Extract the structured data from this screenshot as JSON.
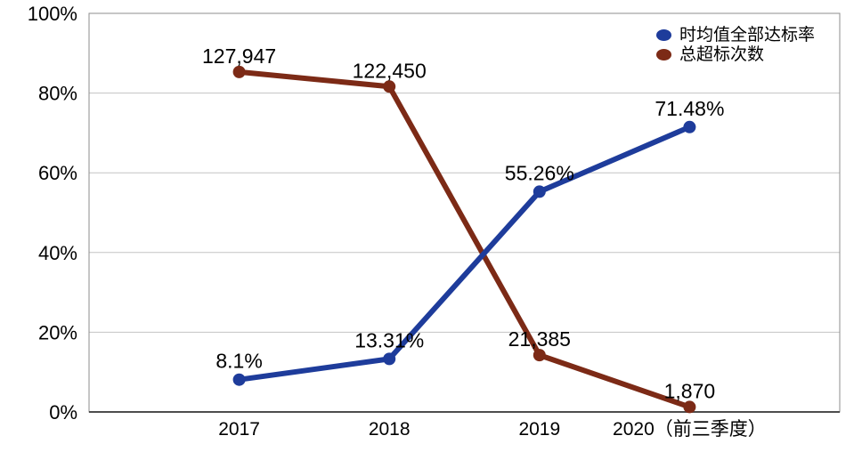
{
  "chart_data": {
    "type": "line",
    "title": "",
    "categories": [
      "2017",
      "2018",
      "2019",
      "2020（前三季度）"
    ],
    "series": [
      {
        "id": "compliance_rate",
        "name": "时均值全部达标率",
        "color": "#1e3c9b",
        "axis": "percent_left",
        "values": [
          8.1,
          13.31,
          55.26,
          71.48
        ],
        "labels": [
          "8.1%",
          "13.31%",
          "55.26%",
          "71.48%"
        ]
      },
      {
        "id": "exceedance_count",
        "name": "总超标次数",
        "color": "#7c2a16",
        "axis": "count_hidden",
        "values": [
          127947,
          122450,
          21385,
          1870
        ],
        "labels": [
          "127,947",
          "122,450",
          "21,385",
          "1,870"
        ]
      }
    ],
    "y_axis": {
      "tick_labels": [
        "0%",
        "20%",
        "40%",
        "60%",
        "80%",
        "100%"
      ],
      "min": 0,
      "max": 100
    },
    "secondary_axis": {
      "min": 0,
      "max": 150000,
      "visible": false
    },
    "grid": true,
    "legend_position": "top-right",
    "colors": {
      "grid": "#c3c3c3",
      "border": "#8c8c8c",
      "axis": "#4d4d4d",
      "label": "#000000"
    }
  }
}
